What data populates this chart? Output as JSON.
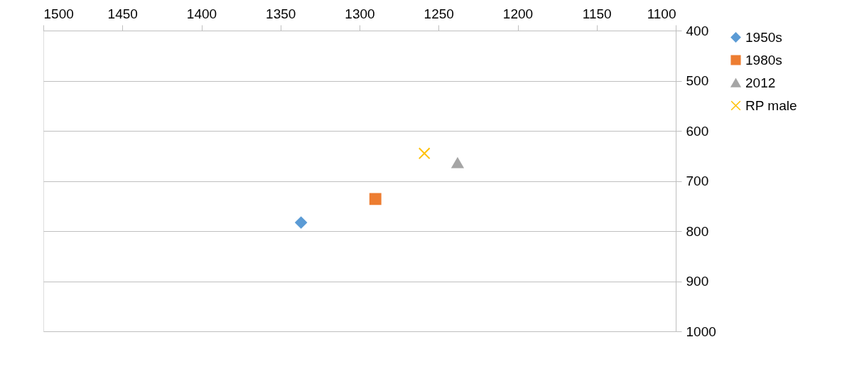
{
  "chart_data": {
    "type": "scatter",
    "series": [
      {
        "name": "1950s",
        "color": "#5b9bd5",
        "marker": "diamond",
        "x": [
          1337
        ],
        "values": [
          783
        ]
      },
      {
        "name": "1980s",
        "color": "#ed7d31",
        "marker": "square",
        "x": [
          1290
        ],
        "values": [
          736
        ]
      },
      {
        "name": "2012",
        "color": "#a5a5a5",
        "marker": "triangle",
        "x": [
          1238
        ],
        "values": [
          664
        ]
      },
      {
        "name": "RP male",
        "color": "#ffc000",
        "marker": "cross",
        "x": [
          1259
        ],
        "values": [
          645
        ]
      }
    ],
    "xlim": [
      1500,
      1100
    ],
    "xticks": [
      1500,
      1450,
      1400,
      1350,
      1300,
      1250,
      1200,
      1150,
      1100
    ],
    "ylim": [
      1000,
      400
    ],
    "yticks": [
      400,
      500,
      600,
      700,
      800,
      900,
      1000
    ],
    "grid": "y",
    "legend": "right"
  }
}
